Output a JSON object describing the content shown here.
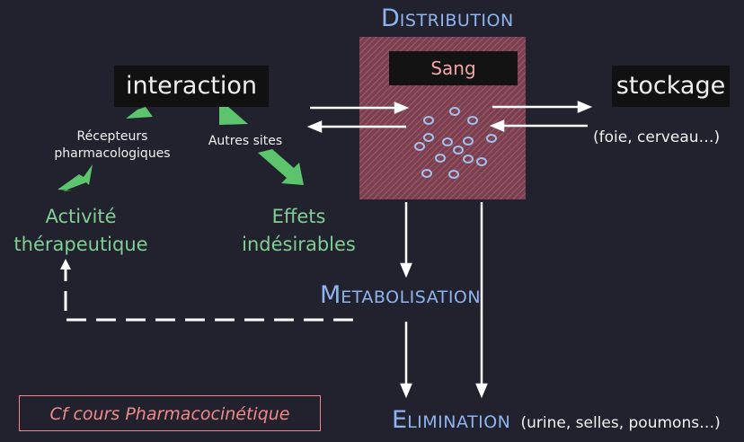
{
  "distribution": {
    "initial": "D",
    "rest": "ISTRIBUTION"
  },
  "sang": "Sang",
  "interaction": "interaction",
  "stockage": "stockage",
  "stockage_detail": "(foie, cerveau…)",
  "recepteurs": [
    "Récepteurs",
    "pharmacologiques"
  ],
  "autres_sites": "Autres sites",
  "activite": [
    "Activité",
    "thérapeutique"
  ],
  "effets": [
    "Effets",
    "indésirables"
  ],
  "metabolisation": {
    "initial": "M",
    "rest": "ETABOLISATION"
  },
  "elimination": {
    "initial": "E",
    "rest": "LIMINATION",
    "detail": "(urine, selles, poumons…)"
  },
  "reference": "Cf cours Pharmacocinétique",
  "colors": {
    "background": "#22212e",
    "title_blue": "#8eb4f0",
    "green": "#7fcf93",
    "box_fill": "#8a4a58",
    "circles": "#9fc2ee",
    "sang_text": "#f3a6a6",
    "reference_border": "#f08a8a"
  }
}
